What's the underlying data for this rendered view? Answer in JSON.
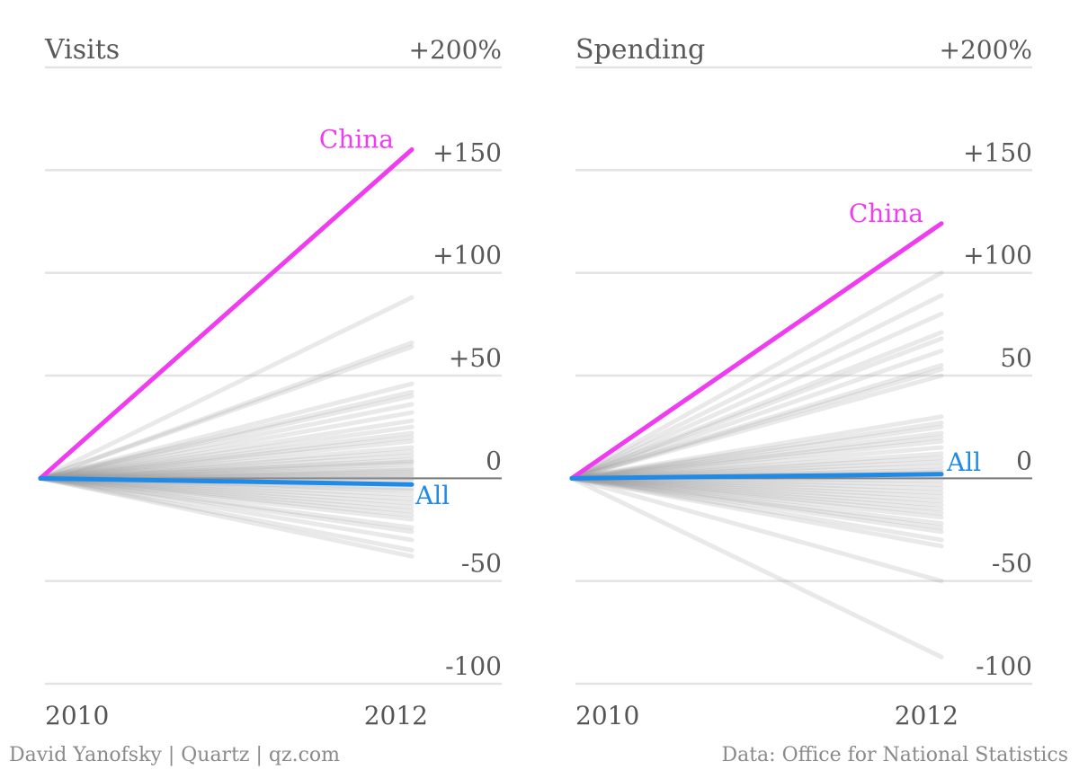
{
  "colors": {
    "highlight": "#f03cf0",
    "all": "#1f8be6",
    "background_line": "#9a9a9a",
    "grid": "#e3e3e3",
    "zero_line": "#777777",
    "text": "#595959"
  },
  "chart_data": [
    {
      "type": "line",
      "title": "Visits",
      "x": [
        2010,
        2012
      ],
      "x_tick_labels": [
        "2010",
        "2012"
      ],
      "ylim": [
        -100,
        200
      ],
      "y_ticks": [
        200,
        150,
        100,
        50,
        0,
        -50,
        -100
      ],
      "y_tick_labels": [
        "+200%",
        "+150",
        "+100",
        "+50",
        "0",
        "-50",
        "-100"
      ],
      "grid": true,
      "highlight_series": [
        {
          "name": "China",
          "values": [
            0,
            160
          ],
          "color_key": "highlight"
        },
        {
          "name": "All",
          "values": [
            0,
            -3
          ],
          "color_key": "all"
        }
      ],
      "other_series_end_values": [
        88,
        66,
        64,
        46,
        42,
        40,
        36,
        32,
        28,
        25,
        22,
        20,
        18,
        15,
        13,
        11,
        9,
        8,
        7,
        5,
        4,
        3,
        2,
        1,
        0,
        -1,
        -3,
        -5,
        -6,
        -8,
        -10,
        -12,
        -14,
        -16,
        -18,
        -20,
        -24,
        -26,
        -30,
        -35,
        -38
      ]
    },
    {
      "type": "line",
      "title": "Spending",
      "x": [
        2010,
        2012
      ],
      "x_tick_labels": [
        "2010",
        "2012"
      ],
      "ylim": [
        -100,
        200
      ],
      "y_ticks": [
        200,
        150,
        100,
        50,
        0,
        -50,
        -100
      ],
      "y_tick_labels": [
        "+200%",
        "+150",
        "+100",
        "50",
        "0",
        "-50",
        "-100"
      ],
      "grid": true,
      "highlight_series": [
        {
          "name": "China",
          "values": [
            0,
            124
          ],
          "color_key": "highlight"
        },
        {
          "name": "All",
          "values": [
            0,
            2
          ],
          "color_key": "all"
        }
      ],
      "other_series_end_values": [
        100,
        89,
        80,
        71,
        68,
        62,
        55,
        53,
        50,
        30,
        27,
        25,
        22,
        20,
        18,
        15,
        12,
        10,
        8,
        6,
        4,
        3,
        1,
        -1,
        -3,
        -5,
        -7,
        -9,
        -11,
        -13,
        -15,
        -17,
        -19,
        -22,
        -24,
        -26,
        -30,
        -33,
        -50,
        -87
      ]
    }
  ],
  "credits": {
    "left": "David Yanofsky | Quartz | qz.com",
    "right": "Data: Office for National Statistics"
  }
}
